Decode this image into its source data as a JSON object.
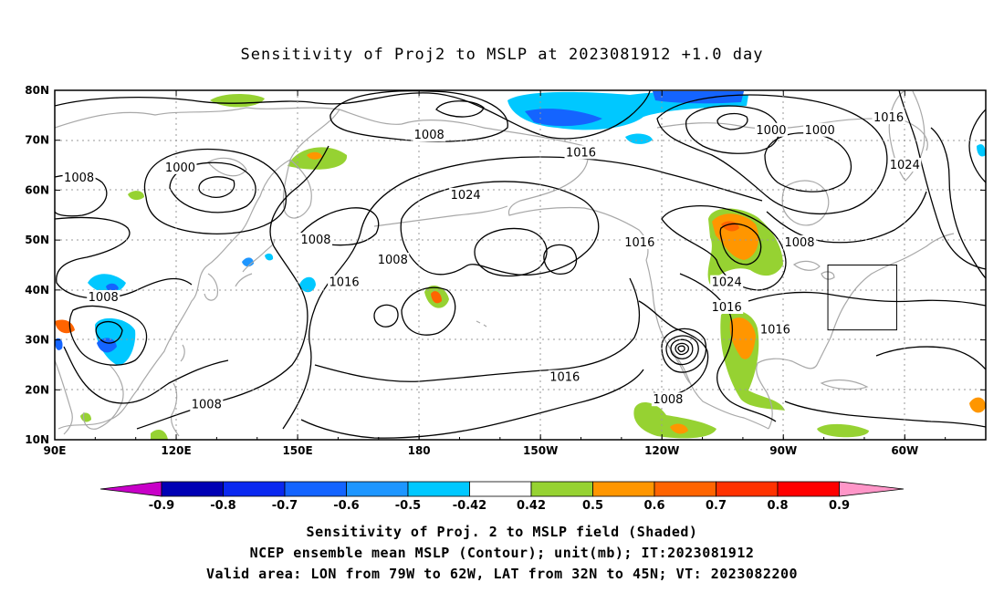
{
  "title": "Sensitivity of Proj2 to MSLP at 2023081912 +1.0 day",
  "axes": {
    "x_ticks": [
      "90E",
      "120E",
      "150E",
      "180",
      "150W",
      "120W",
      "90W",
      "60W"
    ],
    "y_ticks": [
      "80N",
      "70N",
      "60N",
      "50N",
      "40N",
      "30N",
      "20N",
      "10N"
    ]
  },
  "contour_labels": [
    {
      "text": "1008",
      "lon": -177.5,
      "lat": 71
    },
    {
      "text": "1000",
      "lon": -93,
      "lat": 72
    },
    {
      "text": "1000",
      "lon": -81,
      "lat": 72
    },
    {
      "text": "1016",
      "lon": -64,
      "lat": 74.5
    },
    {
      "text": "1024",
      "lon": -60,
      "lat": 65
    },
    {
      "text": "1008",
      "lon": 96,
      "lat": 62.5
    },
    {
      "text": "1000",
      "lon": 121,
      "lat": 64.5
    },
    {
      "text": "1016",
      "lon": -140,
      "lat": 67.5
    },
    {
      "text": "1024",
      "lon": -168.5,
      "lat": 59
    },
    {
      "text": "1008",
      "lon": 154.5,
      "lat": 50
    },
    {
      "text": "1008",
      "lon": 173.5,
      "lat": 46
    },
    {
      "text": "1016",
      "lon": -125.5,
      "lat": 49.5
    },
    {
      "text": "1008",
      "lon": -86,
      "lat": 49.5
    },
    {
      "text": "1016",
      "lon": 161.5,
      "lat": 41.5
    },
    {
      "text": "1024",
      "lon": -104,
      "lat": 41.5
    },
    {
      "text": "1016",
      "lon": -104,
      "lat": 36.5
    },
    {
      "text": "1008",
      "lon": 102,
      "lat": 38.5
    },
    {
      "text": "1016",
      "lon": -92,
      "lat": 32
    },
    {
      "text": "1016",
      "lon": -144,
      "lat": 22.5
    },
    {
      "text": "1008",
      "lon": -118.5,
      "lat": 18
    },
    {
      "text": "1008",
      "lon": 127.5,
      "lat": 17
    }
  ],
  "valid_area": {
    "lon": [
      -79,
      -62
    ],
    "lat": [
      32,
      45
    ]
  },
  "colorbar": {
    "labels": [
      "-0.9",
      "-0.8",
      "-0.7",
      "-0.6",
      "-0.5",
      "-0.42",
      "0.42",
      "0.5",
      "0.6",
      "0.7",
      "0.8",
      "0.9"
    ],
    "colors": [
      "#0000b4",
      "#0a28f0",
      "#1464ff",
      "#1e96ff",
      "#00c8ff",
      "#ffffff",
      "#96d232",
      "#ff9600",
      "#ff6400",
      "#ff3200",
      "#ff0000"
    ],
    "under_color": "#c800c8",
    "over_color": "#ff96c8"
  },
  "captions": [
    "Sensitivity of Proj. 2 to MSLP field (Shaded)",
    "NCEP ensemble mean MSLP (Contour); unit(mb); IT:2023081912",
    "Valid area: LON from 79W to 62W, LAT from 32N to 45N; VT: 2023082200"
  ]
}
